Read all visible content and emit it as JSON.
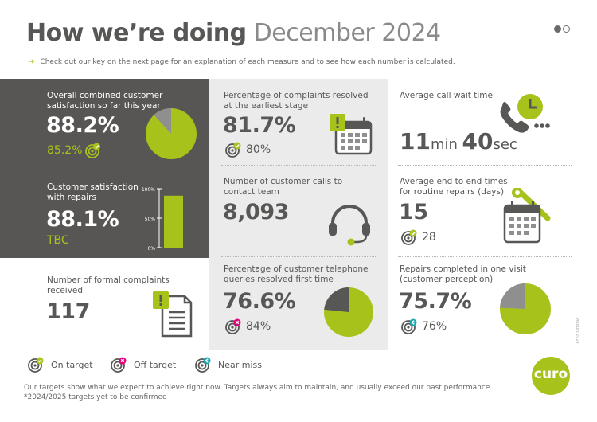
{
  "header": {
    "title_bold": "How we’re doing",
    "title_light": "December 2024",
    "intro": "Check out our key on the next page for an explanation of each measure and to see how each number is calculated."
  },
  "pager": {
    "current": 1,
    "total": 2
  },
  "satisfaction": {
    "label": "Overall combined customer satisfaction so far this year",
    "value": "88.2%",
    "target": "85.2%",
    "target_status": "on-target",
    "pie_fraction": 0.882
  },
  "repairs_satisfaction": {
    "label": "Customer satisfaction with repairs",
    "value": "88.1%",
    "target": "TBC",
    "bar_fraction": 0.881,
    "axis_ticks": [
      "100%",
      "50%",
      "0%"
    ]
  },
  "complaints": {
    "label": "Number of formal complaints received",
    "value": "117"
  },
  "earliest_stage": {
    "label": "Percentage of complaints resolved at the earliest stage",
    "value": "81.7%",
    "target": "80%",
    "target_status": "on-target"
  },
  "calls": {
    "label": "Number of customer calls to contact team",
    "value": "8,093"
  },
  "first_time": {
    "label": "Percentage of customer telephone queries resolved first time",
    "value": "76.6%",
    "target": "84%",
    "target_status": "off-target",
    "pie_fraction": 0.766
  },
  "wait": {
    "label": "Average call wait time",
    "minutes": "11",
    "min_unit": "min",
    "seconds": "40",
    "sec_unit": "sec"
  },
  "repair_times": {
    "label": "Average end to end times for routine repairs (days)",
    "value": "15",
    "target": "28",
    "target_status": "on-target"
  },
  "one_visit": {
    "label": "Repairs completed in one visit (customer perception)",
    "value": "75.7%",
    "target": "76%",
    "target_status": "near-miss",
    "pie_fraction": 0.757
  },
  "legend": {
    "on_target": "On target",
    "off_target": "Off target",
    "near_miss": "Near miss"
  },
  "footer": {
    "line1": "Our targets show what we expect to achieve right now. Targets always aim to maintain, and usually exceed our past performance.",
    "line2": "*2024/2025 targets yet to be confirmed"
  },
  "side_date": "August 2024",
  "brand": {
    "logo_text": "curo"
  },
  "colors": {
    "accent_green": "#a8c21c",
    "dark_grey": "#585654",
    "light_grey_panel": "#ebebeb",
    "off_target_pink": "#e6007e",
    "near_miss_teal": "#1fa8b0",
    "text_grey": "#575756"
  }
}
